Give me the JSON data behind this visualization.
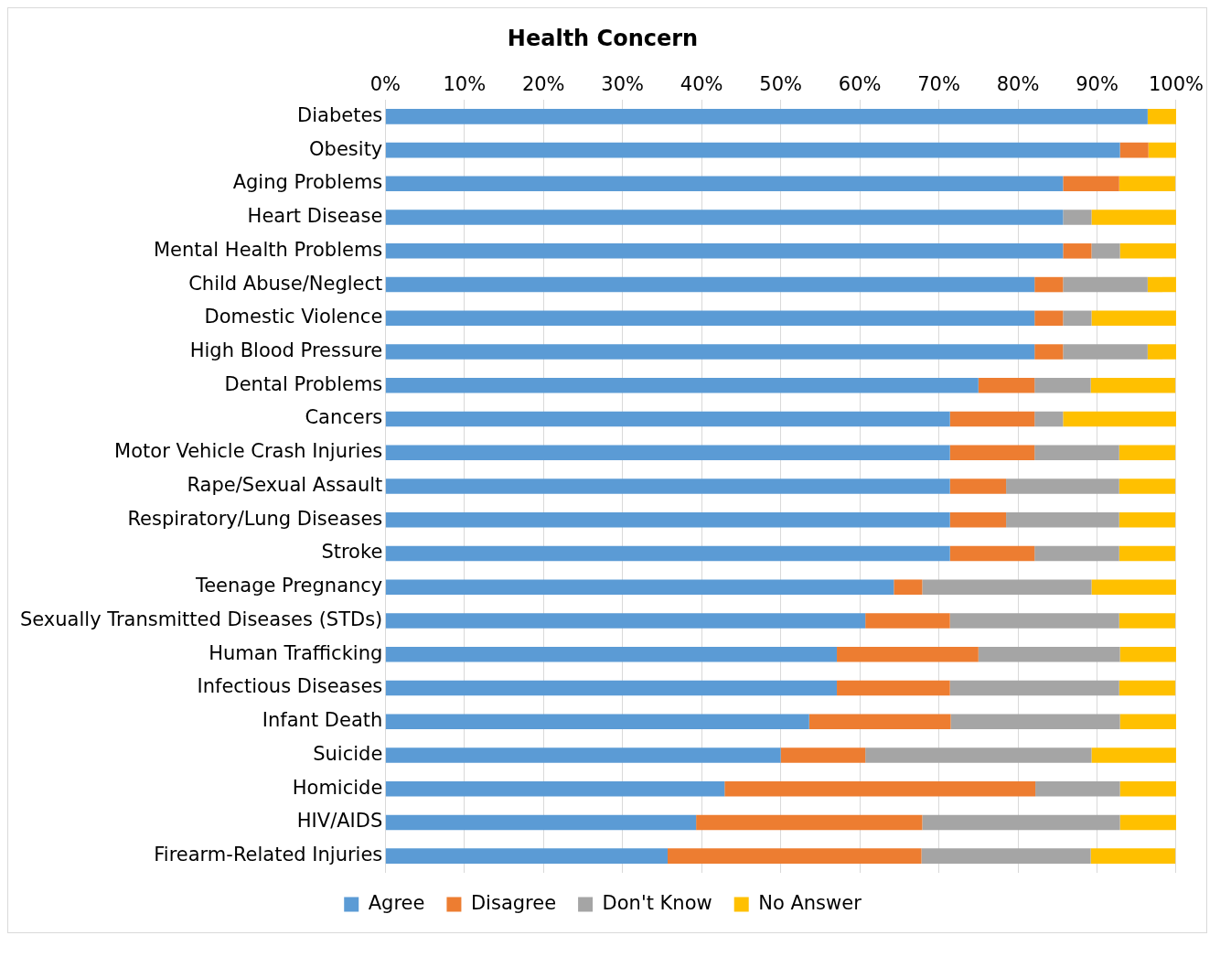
{
  "chart_data": {
    "type": "bar",
    "orientation": "horizontal",
    "stacked": true,
    "title": "Health Concern",
    "categories": [
      "Diabetes",
      "Obesity",
      "Aging Problems",
      "Heart Disease",
      "Mental Health Problems",
      "Child Abuse/Neglect",
      "Domestic Violence",
      "High Blood Pressure",
      "Dental Problems",
      "Cancers",
      "Motor Vehicle Crash Injuries",
      "Rape/Sexual Assault",
      "Respiratory/Lung Diseases",
      "Stroke",
      "Teenage Pregnancy",
      "Sexually Transmitted Diseases (STDs)",
      "Human Trafficking",
      "Infectious Diseases",
      "Infant Death",
      "Suicide",
      "Homicide",
      "HIV/AIDS",
      "Firearm-Related Injuries"
    ],
    "series": [
      {
        "name": "Agree",
        "color": "#5b9bd5",
        "values": [
          96.4,
          92.9,
          85.7,
          85.7,
          85.7,
          82.1,
          82.1,
          82.1,
          75.0,
          71.4,
          71.4,
          71.4,
          71.4,
          71.4,
          64.3,
          60.7,
          57.1,
          57.1,
          53.6,
          50.0,
          42.9,
          39.3,
          35.7
        ]
      },
      {
        "name": "Disagree",
        "color": "#ed7d31",
        "values": [
          0,
          3.6,
          7.1,
          0,
          3.6,
          3.6,
          3.6,
          3.6,
          7.1,
          10.7,
          10.7,
          7.1,
          7.1,
          10.7,
          3.6,
          10.7,
          17.9,
          14.3,
          17.9,
          10.7,
          39.3,
          28.6,
          32.1
        ]
      },
      {
        "name": "Don't Know",
        "color": "#a5a5a5",
        "values": [
          0,
          0,
          0,
          3.6,
          3.6,
          10.7,
          3.6,
          10.7,
          7.1,
          3.6,
          10.7,
          14.3,
          14.3,
          10.7,
          21.4,
          21.4,
          17.9,
          21.4,
          21.4,
          28.6,
          10.7,
          25.0,
          21.4
        ]
      },
      {
        "name": "No Answer",
        "color": "#ffc000",
        "values": [
          3.6,
          3.6,
          7.1,
          10.7,
          7.1,
          3.6,
          10.7,
          3.6,
          10.7,
          14.3,
          7.1,
          7.1,
          7.1,
          7.1,
          10.7,
          7.1,
          7.1,
          7.1,
          7.1,
          10.7,
          7.1,
          7.1,
          10.7
        ]
      }
    ],
    "xlim": [
      0,
      100
    ],
    "xticks": [
      {
        "value": 0,
        "label": "0%"
      },
      {
        "value": 10,
        "label": "10%"
      },
      {
        "value": 20,
        "label": "20%"
      },
      {
        "value": 30,
        "label": "30%"
      },
      {
        "value": 40,
        "label": "40%"
      },
      {
        "value": 50,
        "label": "50%"
      },
      {
        "value": 60,
        "label": "60%"
      },
      {
        "value": 70,
        "label": "70%"
      },
      {
        "value": 80,
        "label": "80%"
      },
      {
        "value": 90,
        "label": "90%"
      },
      {
        "value": 100,
        "label": "100%"
      }
    ],
    "grid": "x",
    "legend": "bottom"
  }
}
